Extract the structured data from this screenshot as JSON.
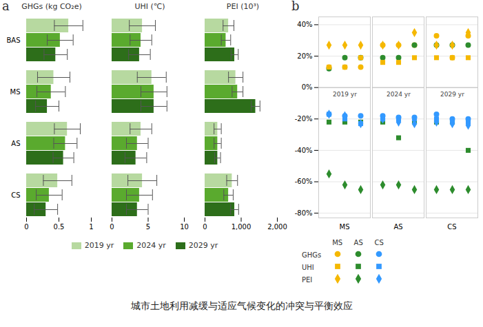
{
  "title": "城市土地利用减缓与适应气候变化的冲突与平衡效应",
  "chart_data": [
    {
      "type": "bar",
      "orientation": "horizontal",
      "panel_label": "a",
      "title": "GHGs (kg CO₂e)",
      "categories": [
        "BAS",
        "MS",
        "AS",
        "CS"
      ],
      "series": [
        {
          "name": "2019 yr",
          "color": "#b7d9a0",
          "values": [
            0.65,
            0.42,
            0.63,
            0.48
          ],
          "errors": [
            0.22,
            0.25,
            0.2,
            0.22
          ]
        },
        {
          "name": "2024 yr",
          "color": "#5aaa2e",
          "values": [
            0.52,
            0.38,
            0.6,
            0.35
          ],
          "errors": [
            0.2,
            0.22,
            0.18,
            0.2
          ]
        },
        {
          "name": "2029 yr",
          "color": "#2d6e1a",
          "values": [
            0.45,
            0.32,
            0.57,
            0.3
          ],
          "errors": [
            0.18,
            0.18,
            0.16,
            0.18
          ]
        }
      ],
      "xlim": [
        0,
        1
      ],
      "xticks": [
        0,
        0.5,
        1
      ],
      "legend": "bottom"
    },
    {
      "type": "bar",
      "orientation": "horizontal",
      "title": "UHI (℃)",
      "categories": [
        "BAS",
        "MS",
        "AS",
        "CS"
      ],
      "series": [
        {
          "name": "2019 yr",
          "color": "#b7d9a0",
          "values": [
            4.2,
            5.5,
            4.0,
            4.2
          ],
          "errors": [
            1.8,
            2.0,
            1.5,
            2.0
          ]
        },
        {
          "name": "2024 yr",
          "color": "#5aaa2e",
          "values": [
            4.0,
            5.8,
            3.5,
            3.8
          ],
          "errors": [
            1.5,
            1.8,
            1.5,
            1.8
          ]
        },
        {
          "name": "2029 yr",
          "color": "#2d6e1a",
          "values": [
            3.8,
            5.8,
            3.3,
            3.5
          ],
          "errors": [
            1.5,
            1.8,
            1.5,
            1.5
          ]
        }
      ],
      "xlim": [
        0,
        10
      ],
      "xticks": [
        0,
        5,
        10
      ],
      "tick_labels": "x"
    },
    {
      "type": "bar",
      "orientation": "horizontal",
      "title": "PEI (10³)",
      "categories": [
        "BAS",
        "MS",
        "AS",
        "CS"
      ],
      "series": [
        {
          "name": "2019 yr",
          "color": "#b7d9a0",
          "values": [
            650,
            850,
            350,
            750
          ],
          "errors": [
            150,
            200,
            100,
            150
          ]
        },
        {
          "name": "2024 yr",
          "color": "#5aaa2e",
          "values": [
            580,
            900,
            350,
            650
          ],
          "errors": [
            130,
            150,
            100,
            130
          ]
        },
        {
          "name": "2029 yr",
          "color": "#2d6e1a",
          "values": [
            820,
            1400,
            350,
            820
          ],
          "errors": [
            100,
            120,
            80,
            110
          ]
        }
      ],
      "xlim": [
        0,
        2000
      ],
      "xticks": [
        0,
        {
          "value": 1000,
          "label": "1,000"
        },
        {
          "value": 2000,
          "label": "2,000"
        }
      ],
      "tick_labels": "x"
    },
    {
      "type": "scatter",
      "panel_label": "b",
      "categories": [
        "MS",
        "AS",
        "CS"
      ],
      "annotations": [
        "2019 yr",
        "2024 yr",
        "2029 yr"
      ],
      "series": [
        {
          "name": "GHGs",
          "group": "MS",
          "marker": "circle",
          "color": "#f5b800",
          "values": [
            [
              13,
              13,
              13
            ],
            [
              27,
              27,
              27
            ],
            [
              33,
              19,
              33
            ]
          ]
        },
        {
          "name": "GHGs",
          "group": "AS",
          "marker": "circle",
          "color": "#2d8c2d",
          "values": [
            [
              12,
              19,
              19
            ],
            [
              19,
              19,
              27
            ],
            [
              27,
              27,
              27
            ]
          ]
        },
        {
          "name": "GHGs",
          "group": "CS",
          "marker": "circle",
          "color": "#3399ff",
          "values": [
            [
              -17,
              -18,
              -18
            ],
            [
              -18,
              -19,
              -19
            ],
            [
              -17,
              -20,
              -20
            ]
          ]
        },
        {
          "name": "UHI",
          "group": "MS",
          "marker": "square",
          "color": "#f5b800",
          "values": [
            [
              13,
              13,
              19
            ],
            [
              16,
              16,
              19
            ],
            [
              19,
              19,
              19
            ]
          ]
        },
        {
          "name": "UHI",
          "group": "AS",
          "marker": "square",
          "color": "#2d8c2d",
          "values": [
            [
              -22,
              -22,
              -22
            ],
            [
              -22,
              -32,
              -22
            ],
            [
              -22,
              -22,
              -40
            ]
          ]
        },
        {
          "name": "UHI",
          "group": "CS",
          "marker": "square",
          "color": "#3399ff",
          "values": [
            [
              -17,
              -20,
              -23
            ],
            [
              -20,
              -20,
              -20
            ],
            [
              -20,
              -21,
              -22
            ]
          ]
        },
        {
          "name": "PEI",
          "group": "MS",
          "marker": "diamond",
          "color": "#f5b800",
          "values": [
            [
              27,
              27,
              27
            ],
            [
              27,
              27,
              35
            ],
            [
              27,
              27,
              35
            ]
          ]
        },
        {
          "name": "PEI",
          "group": "AS",
          "marker": "diamond",
          "color": "#2d8c2d",
          "values": [
            [
              -55,
              -62,
              -65
            ],
            [
              -62,
              -62,
              -65
            ],
            [
              -65,
              -65,
              -65
            ]
          ]
        },
        {
          "name": "PEI",
          "group": "CS",
          "marker": "diamond",
          "color": "#3399ff",
          "values": [
            [
              -17,
              -18,
              -23
            ],
            [
              -20,
              -22,
              -23
            ],
            [
              -22,
              -23,
              -24
            ]
          ]
        }
      ],
      "ylim": [
        -83,
        45
      ],
      "yticks": [
        {
          "value": -80,
          "label": "-80%"
        },
        {
          "value": -60,
          "label": "-60%"
        },
        {
          "value": -40,
          "label": "-40%"
        },
        {
          "value": -20,
          "label": "-20%"
        },
        {
          "value": 0,
          "label": "0%"
        },
        {
          "value": 20,
          "label": "20%"
        },
        {
          "value": 40,
          "label": "40%"
        }
      ],
      "grid": true,
      "legend": "bottom"
    }
  ]
}
